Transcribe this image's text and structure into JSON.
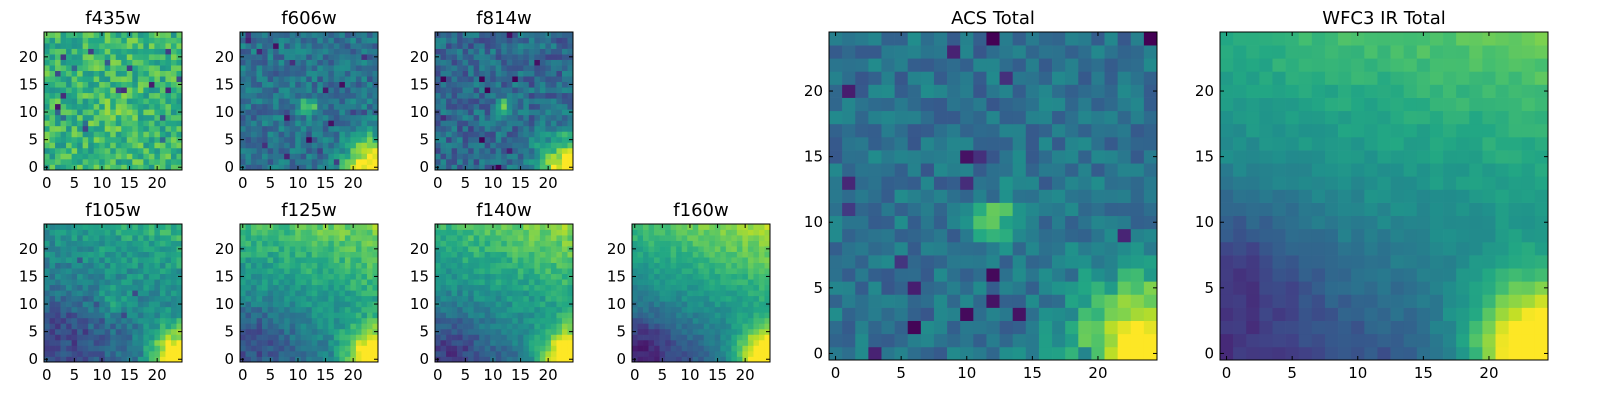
{
  "chart_data": {
    "type": "heatmap",
    "colormap": "viridis",
    "grid": false,
    "panels": [
      {
        "id": "f435w",
        "title": "f435w",
        "xticks": [
          0,
          5,
          10,
          15,
          20
        ],
        "yticks": [
          0,
          5,
          10,
          15,
          20
        ],
        "xlim": [
          -0.5,
          24.5
        ],
        "ylim": [
          -0.5,
          24.5
        ],
        "pixels": "25x25",
        "pattern": "noisy high background with mild central source"
      },
      {
        "id": "f606w",
        "title": "f606w",
        "xticks": [
          0,
          5,
          10,
          15,
          20
        ],
        "yticks": [
          0,
          5,
          10,
          15,
          20
        ],
        "xlim": [
          -0.5,
          24.5
        ],
        "ylim": [
          -0.5,
          24.5
        ],
        "pixels": "25x25",
        "pattern": "noisy background, compact source at (12,11), bright lower-right corner"
      },
      {
        "id": "f814w",
        "title": "f814w",
        "xticks": [
          0,
          5,
          10,
          15,
          20
        ],
        "yticks": [
          0,
          5,
          10,
          15,
          20
        ],
        "xlim": [
          -0.5,
          24.5
        ],
        "ylim": [
          -0.5,
          24.5
        ],
        "pixels": "25x25",
        "pattern": "noisy background, compact source at (12,11), bright lower-right corner"
      },
      {
        "id": "f105w",
        "title": "f105w",
        "xticks": [
          0,
          5,
          10,
          15,
          20
        ],
        "yticks": [
          0,
          5,
          10,
          15,
          20
        ],
        "xlim": [
          -0.5,
          24.5
        ],
        "ylim": [
          -0.5,
          24.5
        ],
        "pixels": "25x25",
        "pattern": "smooth, dark lower-left, bright lower-right corner"
      },
      {
        "id": "f125w",
        "title": "f125w",
        "xticks": [
          0,
          5,
          10,
          15,
          20
        ],
        "yticks": [
          0,
          5,
          10,
          15,
          20
        ],
        "xlim": [
          -0.5,
          24.5
        ],
        "ylim": [
          -0.5,
          24.5
        ],
        "pixels": "25x25",
        "pattern": "smooth, dark lower-left, bright lower-right corner"
      },
      {
        "id": "f140w",
        "title": "f140w",
        "xticks": [
          0,
          5,
          10,
          15,
          20
        ],
        "yticks": [
          0,
          5,
          10,
          15,
          20
        ],
        "xlim": [
          -0.5,
          24.5
        ],
        "ylim": [
          -0.5,
          24.5
        ],
        "pixels": "25x25",
        "pattern": "smooth, dark lower-left, bright lower-right corner"
      },
      {
        "id": "f160w",
        "title": "f160w",
        "xticks": [
          0,
          5,
          10,
          15,
          20
        ],
        "yticks": [
          0,
          5,
          10,
          15,
          20
        ],
        "xlim": [
          -0.5,
          24.5
        ],
        "ylim": [
          -0.5,
          24.5
        ],
        "pixels": "25x25",
        "pattern": "smooth, dark lower-left, bright lower-right corner"
      },
      {
        "id": "acs-total",
        "title": "ACS Total",
        "xticks": [
          0,
          5,
          10,
          15,
          20
        ],
        "yticks": [
          0,
          5,
          10,
          15,
          20
        ],
        "xlim": [
          -0.5,
          24.5
        ],
        "ylim": [
          -0.5,
          24.5
        ],
        "pixels": "25x25",
        "pattern": "noisy background, bright source at (12,10), bright lower-right corner"
      },
      {
        "id": "wfc3-ir-total",
        "title": "WFC3 IR Total",
        "xticks": [
          0,
          5,
          10,
          15,
          20
        ],
        "yticks": [
          0,
          5,
          10,
          15,
          20
        ],
        "xlim": [
          -0.5,
          24.5
        ],
        "ylim": [
          -0.5,
          24.5
        ],
        "pixels": "25x25",
        "pattern": "smooth, dark lower-left, bright lower-right corner"
      }
    ]
  }
}
